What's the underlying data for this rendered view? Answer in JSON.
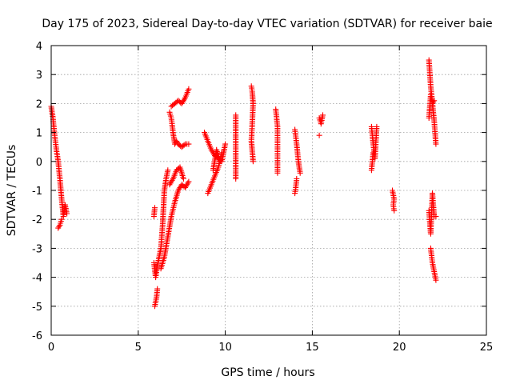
{
  "chart_data": {
    "type": "scatter",
    "title": "Day 175 of 2023, Sidereal Day-to-day VTEC variation (SDTVAR) for receiver baie",
    "xlabel": "GPS time / hours",
    "ylabel": "SDTVAR / TECUs",
    "xlim": [
      0,
      25
    ],
    "ylim": [
      -6,
      4
    ],
    "xticks": [
      "0",
      "5",
      "10",
      "15",
      "20",
      "25"
    ],
    "yticks": [
      "-6",
      "-5",
      "-4",
      "-3",
      "-2",
      "-1",
      "0",
      "1",
      "2",
      "3",
      "4"
    ],
    "grid": true,
    "marker": "+",
    "color": "#ff0000",
    "segments": [
      {
        "x": [
          0.0,
          0.1,
          0.2,
          0.3,
          0.4,
          0.5,
          0.6,
          0.7,
          0.8,
          0.9
        ],
        "y": [
          1.9,
          1.5,
          0.9,
          0.4,
          0.0,
          -0.6,
          -1.3,
          -1.9,
          -1.5,
          -1.8
        ]
      },
      {
        "x": [
          0.4,
          0.5,
          0.6
        ],
        "y": [
          -2.3,
          -2.2,
          -2.0
        ]
      },
      {
        "x": [
          5.9,
          6.0,
          6.1,
          6.2,
          6.3,
          6.4,
          6.5,
          6.6,
          6.7
        ],
        "y": [
          -3.5,
          -4.0,
          -3.6,
          -3.3,
          -3.0,
          -2.2,
          -1.0,
          -0.6,
          -0.3
        ]
      },
      {
        "x": [
          5.95,
          6.05,
          6.1
        ],
        "y": [
          -5.0,
          -4.7,
          -4.4
        ]
      },
      {
        "x": [
          5.9,
          5.95
        ],
        "y": [
          -1.9,
          -1.6
        ]
      },
      {
        "x": [
          6.3,
          6.5,
          6.7,
          6.9,
          7.1,
          7.3,
          7.5,
          7.7,
          7.9
        ],
        "y": [
          -3.7,
          -3.3,
          -2.6,
          -1.9,
          -1.4,
          -1.0,
          -0.8,
          -0.9,
          -0.7
        ]
      },
      {
        "x": [
          6.8,
          7.0,
          7.2,
          7.4,
          7.6
        ],
        "y": [
          -0.8,
          -0.6,
          -0.3,
          -0.2,
          -0.6
        ]
      },
      {
        "x": [
          6.8,
          6.9,
          7.0,
          7.1,
          7.2,
          7.3
        ],
        "y": [
          1.7,
          1.5,
          1.0,
          0.6,
          0.7,
          0.6
        ]
      },
      {
        "x": [
          7.3,
          7.5,
          7.7,
          7.9
        ],
        "y": [
          0.6,
          0.5,
          0.6,
          0.6
        ]
      },
      {
        "x": [
          6.9,
          7.1,
          7.3,
          7.5,
          7.7,
          7.9
        ],
        "y": [
          1.9,
          2.0,
          2.1,
          2.0,
          2.2,
          2.5
        ]
      },
      {
        "x": [
          8.8,
          9.0,
          9.2,
          9.4,
          9.6,
          9.8,
          10.0
        ],
        "y": [
          1.0,
          0.7,
          0.4,
          0.2,
          0.1,
          0.0,
          0.6
        ]
      },
      {
        "x": [
          9.0,
          9.2,
          9.4,
          9.6,
          9.8
        ],
        "y": [
          -1.1,
          -0.8,
          -0.5,
          -0.2,
          0.3
        ]
      },
      {
        "x": [
          9.3,
          9.5,
          9.7
        ],
        "y": [
          -0.3,
          0.4,
          0.0
        ]
      },
      {
        "x": [
          10.6,
          10.6,
          10.6
        ],
        "y": [
          1.6,
          0.1,
          -0.6
        ]
      },
      {
        "x": [
          11.5,
          11.55,
          11.6,
          11.5,
          11.6
        ],
        "y": [
          2.6,
          2.4,
          2.0,
          0.7,
          0.0
        ]
      },
      {
        "x": [
          12.9,
          12.95,
          13.0,
          13.0
        ],
        "y": [
          1.8,
          1.5,
          1.2,
          -0.4
        ]
      },
      {
        "x": [
          14.0,
          14.1,
          14.2,
          14.3
        ],
        "y": [
          1.1,
          0.6,
          0.0,
          -0.4
        ]
      },
      {
        "x": [
          14.0,
          14.05,
          14.1
        ],
        "y": [
          -1.1,
          -0.9,
          -0.6
        ]
      },
      {
        "x": [
          15.4,
          15.5,
          15.6
        ],
        "y": [
          1.5,
          1.3,
          1.6
        ]
      },
      {
        "x": [
          15.4
        ],
        "y": [
          0.9
        ]
      },
      {
        "x": [
          18.4,
          18.5,
          18.6,
          18.7
        ],
        "y": [
          1.2,
          0.6,
          0.1,
          1.2
        ]
      },
      {
        "x": [
          18.4,
          18.5
        ],
        "y": [
          -0.3,
          0.3
        ]
      },
      {
        "x": [
          19.6,
          19.7,
          19.65,
          19.7
        ],
        "y": [
          -1.0,
          -1.3,
          -1.5,
          -1.7
        ]
      },
      {
        "x": [
          21.7,
          21.8,
          21.9,
          22.0,
          22.1
        ],
        "y": [
          3.5,
          2.6,
          2.0,
          1.4,
          0.6
        ]
      },
      {
        "x": [
          21.7,
          21.8,
          21.9,
          22.0
        ],
        "y": [
          1.5,
          2.3,
          2.0,
          2.1
        ]
      },
      {
        "x": [
          21.7,
          21.8,
          21.9,
          22.0,
          22.1
        ],
        "y": [
          -1.7,
          -2.5,
          -1.1,
          -1.9,
          -1.9
        ]
      },
      {
        "x": [
          21.8,
          21.9,
          22.0,
          22.1
        ],
        "y": [
          -3.0,
          -3.5,
          -3.8,
          -4.1
        ]
      }
    ]
  }
}
